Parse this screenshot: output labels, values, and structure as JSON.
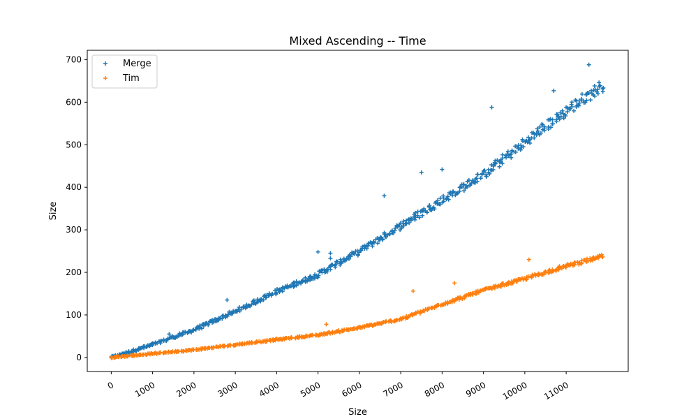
{
  "chart_data": {
    "type": "scatter",
    "title": "Mixed Ascending -- Time",
    "xlabel": "Size",
    "ylabel": "Size",
    "xlim": [
      -580,
      12500
    ],
    "ylim": [
      -33,
      722
    ],
    "x_ticks": [
      0,
      1000,
      2000,
      3000,
      4000,
      5000,
      6000,
      7000,
      8000,
      9000,
      10000,
      11000
    ],
    "x_tick_labels": [
      "0",
      "1000",
      "2000",
      "3000",
      "4000",
      "5000",
      "6000",
      "7000",
      "8000",
      "9000",
      "10000",
      "11000"
    ],
    "y_ticks": [
      0,
      100,
      200,
      300,
      400,
      500,
      600,
      700
    ],
    "y_tick_labels": [
      "0",
      "100",
      "200",
      "300",
      "400",
      "500",
      "600",
      "700"
    ],
    "x_tick_rotation_deg": 30,
    "marker": "plus",
    "grid": false,
    "legend_position": "top-left",
    "series": [
      {
        "name": "Merge",
        "color": "#1f77b4",
        "trend": {
          "x": [
            0,
            1000,
            2000,
            3000,
            4000,
            5000,
            6000,
            7000,
            8000,
            9000,
            10000,
            11000,
            11900
          ],
          "y": [
            0,
            30,
            65,
            108,
            155,
            195,
            250,
            310,
            370,
            430,
            505,
            580,
            640
          ]
        },
        "outliers": [
          {
            "x": 1400,
            "y": 55
          },
          {
            "x": 2800,
            "y": 135
          },
          {
            "x": 5000,
            "y": 248
          },
          {
            "x": 5300,
            "y": 245
          },
          {
            "x": 5300,
            "y": 233
          },
          {
            "x": 6600,
            "y": 380
          },
          {
            "x": 7500,
            "y": 435
          },
          {
            "x": 8000,
            "y": 442
          },
          {
            "x": 9200,
            "y": 588
          },
          {
            "x": 10700,
            "y": 627
          },
          {
            "x": 11550,
            "y": 688
          }
        ]
      },
      {
        "name": "Tim",
        "color": "#ff7f0e",
        "trend": {
          "x": [
            0,
            1000,
            2000,
            3000,
            4000,
            5000,
            6000,
            7000,
            8000,
            9000,
            10000,
            11000,
            11900
          ],
          "y": [
            0,
            9,
            18,
            30,
            42,
            53,
            70,
            90,
            125,
            158,
            185,
            215,
            238
          ]
        },
        "outliers": [
          {
            "x": 5200,
            "y": 78
          },
          {
            "x": 7300,
            "y": 156
          },
          {
            "x": 8300,
            "y": 175
          },
          {
            "x": 10100,
            "y": 230
          }
        ]
      }
    ]
  }
}
